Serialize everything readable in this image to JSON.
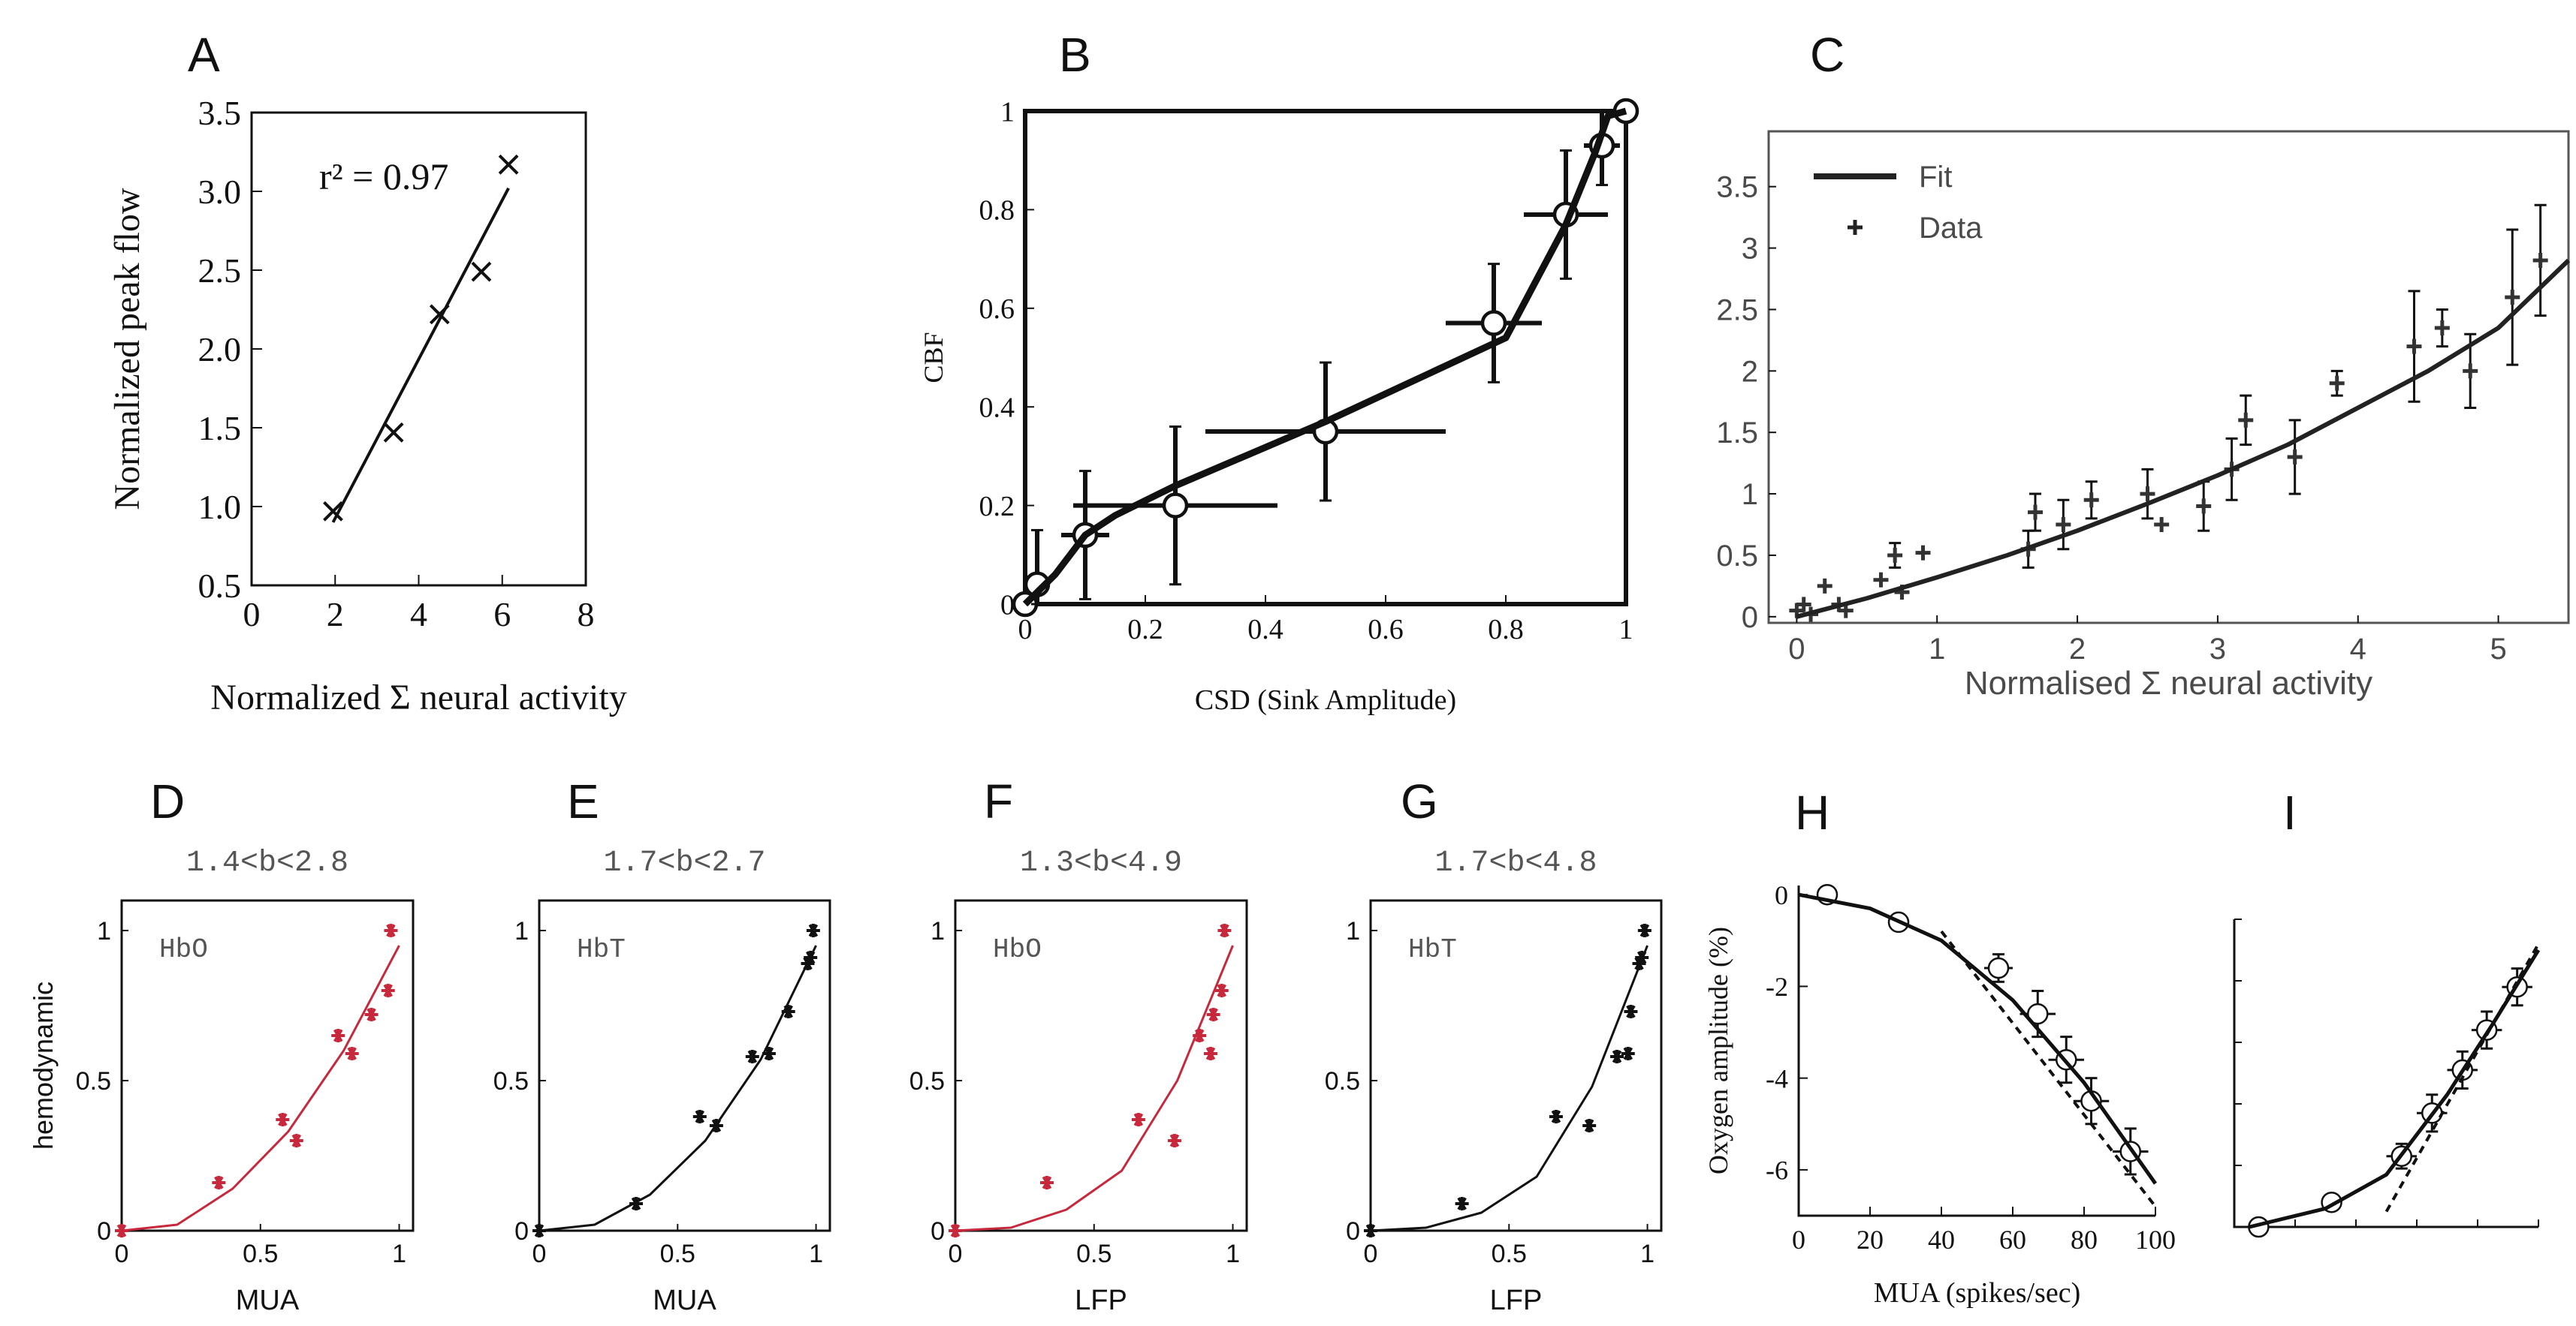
{
  "figure": {
    "panel_letters": [
      "A",
      "B",
      "C",
      "D",
      "E",
      "F",
      "G",
      "H",
      "I"
    ]
  },
  "colors": {
    "ink": "#111111",
    "hbo_red": "#c8283c",
    "grey_text": "#4a4a4a"
  },
  "chart_data": [
    {
      "panel": "A",
      "type": "scatter",
      "title": "",
      "xlabel": "Normalized Σ neural activity",
      "ylabel": "Normalized peak flow",
      "xlim": [
        0,
        8
      ],
      "ylim": [
        0.5,
        3.5
      ],
      "xticks": [
        0,
        2,
        4,
        6,
        8
      ],
      "xtick_labels": [
        "0",
        "2",
        "4",
        "6",
        "8"
      ],
      "yticks": [
        0.5,
        1.0,
        1.5,
        2.0,
        2.5,
        3.0,
        3.5
      ],
      "ytick_labels": [
        "0.5",
        "1.0",
        "1.5",
        "2.0",
        "2.5",
        "3.0",
        "3.5"
      ],
      "annotation": "r² = 0.97",
      "series": [
        {
          "name": "Data",
          "marker": "x",
          "x": [
            1.95,
            3.4,
            4.5,
            5.5,
            6.15
          ],
          "y": [
            0.97,
            1.47,
            2.22,
            2.49,
            3.17
          ]
        },
        {
          "name": "Fit",
          "line": true,
          "x": [
            1.95,
            6.15
          ],
          "y": [
            0.9,
            3.02
          ]
        }
      ]
    },
    {
      "panel": "B",
      "type": "line",
      "title": "",
      "xlabel": "CSD (Sink Amplitude)",
      "ylabel": "CBF",
      "xlim": [
        0,
        1
      ],
      "ylim": [
        0,
        1
      ],
      "xticks": [
        0,
        0.2,
        0.4,
        0.6,
        0.8,
        1
      ],
      "xtick_labels": [
        "0",
        "0.2",
        "0.4",
        "0.6",
        "0.8",
        "1"
      ],
      "yticks": [
        0,
        0.2,
        0.4,
        0.6,
        0.8,
        1
      ],
      "ytick_labels": [
        "0",
        "0.2",
        "0.4",
        "0.6",
        "0.8",
        "1"
      ],
      "series": [
        {
          "name": "Data",
          "marker": "o",
          "x": [
            0,
            0.02,
            0.1,
            0.25,
            0.5,
            0.78,
            0.9,
            0.96,
            1.0
          ],
          "y": [
            0,
            0.04,
            0.14,
            0.2,
            0.35,
            0.57,
            0.79,
            0.93,
            1.0
          ],
          "xerr": [
            0,
            0,
            0.04,
            0.17,
            0.2,
            0.08,
            0.07,
            0.03,
            0
          ],
          "yerr": [
            0,
            0.11,
            0.13,
            0.16,
            0.14,
            0.12,
            0.13,
            0.08,
            0
          ]
        },
        {
          "name": "Fit",
          "line": true,
          "x": [
            0,
            0.05,
            0.1,
            0.15,
            0.25,
            0.5,
            0.8,
            0.9,
            0.95,
            0.97,
            1.0
          ],
          "y": [
            0,
            0.06,
            0.14,
            0.18,
            0.24,
            0.37,
            0.54,
            0.77,
            0.92,
            0.99,
            1.0
          ]
        }
      ]
    },
    {
      "panel": "C",
      "type": "scatter",
      "title": "",
      "xlabel": "Normalised Σ neural activity",
      "ylabel": "",
      "xlim": [
        -0.2,
        5.5
      ],
      "ylim": [
        -0.05,
        3.95
      ],
      "xticks": [
        0,
        1,
        2,
        3,
        4,
        5
      ],
      "xtick_labels": [
        "0",
        "1",
        "2",
        "3",
        "4",
        "5"
      ],
      "yticks": [
        0,
        0.5,
        1,
        1.5,
        2,
        2.5,
        3,
        3.5
      ],
      "ytick_labels": [
        "0",
        "0.5",
        "1",
        "1.5",
        "2",
        "2.5",
        "3",
        "3.5"
      ],
      "legend": [
        "Fit",
        "Data"
      ],
      "series": [
        {
          "name": "Data",
          "marker": "+",
          "x": [
            0.0,
            0.05,
            0.1,
            0.2,
            0.3,
            0.35,
            0.6,
            0.7,
            0.75,
            0.9,
            1.65,
            1.7,
            1.9,
            2.1,
            2.5,
            2.6,
            2.9,
            3.1,
            3.2,
            3.55,
            3.85,
            4.4,
            4.6,
            4.8,
            5.1,
            5.3
          ],
          "y": [
            0.05,
            0.1,
            0.02,
            0.25,
            0.1,
            0.05,
            0.3,
            0.5,
            0.2,
            0.52,
            0.55,
            0.85,
            0.75,
            0.95,
            1.0,
            0.75,
            0.9,
            1.2,
            1.6,
            1.3,
            1.9,
            2.2,
            2.35,
            2.0,
            2.6,
            2.9
          ],
          "yerr": [
            0,
            0,
            0,
            0,
            0,
            0,
            0,
            0.1,
            0,
            0,
            0.15,
            0.15,
            0.2,
            0.15,
            0.2,
            0,
            0.2,
            0.25,
            0.2,
            0.3,
            0.1,
            0.45,
            0.15,
            0.3,
            0.55,
            0.45
          ]
        },
        {
          "name": "Fit",
          "line": true,
          "x": [
            0,
            0.5,
            1,
            1.5,
            2,
            2.5,
            3,
            3.5,
            4,
            4.5,
            5,
            5.5
          ],
          "y": [
            0,
            0.15,
            0.32,
            0.5,
            0.7,
            0.92,
            1.15,
            1.4,
            1.7,
            2.0,
            2.35,
            2.9
          ]
        }
      ]
    },
    {
      "panel": "D",
      "type": "scatter",
      "title": "1.4<b<2.8",
      "inset_label": "HbO",
      "xlabel": "MUA",
      "ylabel": "hemodynamic",
      "xlim": [
        0,
        1.05
      ],
      "ylim": [
        0,
        1.1
      ],
      "xticks": [
        0,
        0.5,
        1
      ],
      "xtick_labels": [
        "0",
        "0.5",
        "1"
      ],
      "yticks": [
        0,
        0.5,
        1
      ],
      "ytick_labels": [
        "0",
        "0.5",
        "1"
      ],
      "series": [
        {
          "name": "Data",
          "marker": "*",
          "x": [
            0,
            0.35,
            0.58,
            0.63,
            0.78,
            0.83,
            0.9,
            0.96,
            0.97
          ],
          "y": [
            0,
            0.16,
            0.37,
            0.3,
            0.65,
            0.59,
            0.72,
            0.8,
            1.0
          ]
        },
        {
          "name": "Fit",
          "line": true,
          "x": [
            0,
            0.2,
            0.4,
            0.6,
            0.8,
            1.0
          ],
          "y": [
            0,
            0.02,
            0.14,
            0.33,
            0.6,
            0.95
          ]
        }
      ]
    },
    {
      "panel": "E",
      "type": "scatter",
      "title": "1.7<b<2.7",
      "inset_label": "HbT",
      "xlabel": "MUA",
      "ylabel": "",
      "xlim": [
        0,
        1.05
      ],
      "ylim": [
        0,
        1.1
      ],
      "xticks": [
        0,
        0.5,
        1
      ],
      "xtick_labels": [
        "0",
        "0.5",
        "1"
      ],
      "yticks": [
        0,
        0.5,
        1
      ],
      "ytick_labels": [
        "0",
        "0.5",
        "1"
      ],
      "series": [
        {
          "name": "Data",
          "marker": "*",
          "x": [
            0,
            0.35,
            0.58,
            0.64,
            0.77,
            0.83,
            0.9,
            0.97,
            0.98,
            0.99
          ],
          "y": [
            0,
            0.09,
            0.38,
            0.35,
            0.58,
            0.59,
            0.73,
            0.89,
            0.91,
            1.0
          ]
        },
        {
          "name": "Fit",
          "line": true,
          "x": [
            0,
            0.2,
            0.4,
            0.6,
            0.8,
            1.0
          ],
          "y": [
            0,
            0.02,
            0.12,
            0.3,
            0.57,
            0.95
          ]
        }
      ]
    },
    {
      "panel": "F",
      "type": "scatter",
      "title": "1.3<b<4.9",
      "inset_label": "HbO",
      "xlabel": "LFP",
      "ylabel": "",
      "xlim": [
        0,
        1.05
      ],
      "ylim": [
        0,
        1.1
      ],
      "xticks": [
        0,
        0.5,
        1
      ],
      "xtick_labels": [
        "0",
        "0.5",
        "1"
      ],
      "yticks": [
        0,
        0.5,
        1
      ],
      "ytick_labels": [
        "0",
        "0.5",
        "1"
      ],
      "series": [
        {
          "name": "Data",
          "marker": "*",
          "x": [
            0,
            0.33,
            0.66,
            0.79,
            0.88,
            0.92,
            0.93,
            0.96,
            0.97
          ],
          "y": [
            0,
            0.16,
            0.37,
            0.3,
            0.65,
            0.59,
            0.72,
            0.8,
            1.0
          ]
        },
        {
          "name": "Fit",
          "line": true,
          "x": [
            0,
            0.2,
            0.4,
            0.6,
            0.8,
            1.0
          ],
          "y": [
            0,
            0.01,
            0.07,
            0.2,
            0.5,
            0.95
          ]
        }
      ]
    },
    {
      "panel": "G",
      "type": "scatter",
      "title": "1.7<b<4.8",
      "inset_label": "HbT",
      "xlabel": "LFP",
      "ylabel": "",
      "xlim": [
        0,
        1.05
      ],
      "ylim": [
        0,
        1.1
      ],
      "xticks": [
        0,
        0.5,
        1
      ],
      "xtick_labels": [
        "0",
        "0.5",
        "1"
      ],
      "yticks": [
        0,
        0.5,
        1
      ],
      "ytick_labels": [
        "0",
        "0.5",
        "1"
      ],
      "series": [
        {
          "name": "Data",
          "marker": "*",
          "x": [
            0,
            0.33,
            0.67,
            0.79,
            0.89,
            0.93,
            0.94,
            0.97,
            0.98,
            0.99
          ],
          "y": [
            0,
            0.09,
            0.38,
            0.35,
            0.58,
            0.59,
            0.73,
            0.89,
            0.91,
            1.0
          ]
        },
        {
          "name": "Fit",
          "line": true,
          "x": [
            0,
            0.2,
            0.4,
            0.6,
            0.8,
            1.0
          ],
          "y": [
            0,
            0.01,
            0.06,
            0.18,
            0.48,
            0.95
          ]
        }
      ]
    },
    {
      "panel": "H",
      "type": "scatter",
      "title": "",
      "xlabel": "MUA (spikes/sec)",
      "ylabel": "Oxygen amplitude (%)",
      "xlim": [
        0,
        100
      ],
      "ylim": [
        -7,
        0.2
      ],
      "xticks": [
        0,
        20,
        40,
        60,
        80,
        100
      ],
      "xtick_labels": [
        "0",
        "20",
        "40",
        "60",
        "80",
        "100"
      ],
      "yticks": [
        0,
        -2,
        -4,
        -6
      ],
      "ytick_labels": [
        "0",
        "-2",
        "-4",
        "-6"
      ],
      "series": [
        {
          "name": "Data",
          "marker": "o",
          "x": [
            8,
            28,
            56,
            67,
            75,
            82,
            93
          ],
          "y": [
            0,
            -0.6,
            -1.6,
            -2.6,
            -3.6,
            -4.5,
            -5.6
          ],
          "xerr": [
            0,
            0,
            4,
            5,
            5,
            5,
            5
          ],
          "yerr": [
            0,
            0,
            0.3,
            0.5,
            0.5,
            0.5,
            0.5
          ]
        },
        {
          "name": "Fit",
          "line": true,
          "x": [
            0,
            20,
            40,
            60,
            80,
            100
          ],
          "y": [
            0,
            -0.3,
            -1.0,
            -2.3,
            -4.1,
            -6.3
          ]
        },
        {
          "name": "Tangent",
          "line": true,
          "dashed": true,
          "x": [
            40,
            100
          ],
          "y": [
            -0.8,
            -6.8
          ]
        }
      ]
    },
    {
      "panel": "I",
      "type": "scatter",
      "title": "",
      "xlabel": "",
      "ylabel": "",
      "xlim": [
        0,
        1
      ],
      "ylim": [
        0,
        1
      ],
      "xticks": [
        0,
        0.2,
        0.4,
        0.6,
        0.8,
        1.0
      ],
      "xtick_labels": [
        "",
        "",
        "",
        "",
        "",
        ""
      ],
      "yticks": [
        0,
        0.2,
        0.4,
        0.6,
        0.8,
        1.0
      ],
      "ytick_labels": [
        "",
        "",
        "",
        "",
        "",
        ""
      ],
      "series": [
        {
          "name": "Data",
          "marker": "o",
          "x": [
            0.08,
            0.32,
            0.55,
            0.65,
            0.75,
            0.83,
            0.93
          ],
          "y": [
            0.0,
            0.08,
            0.23,
            0.37,
            0.51,
            0.64,
            0.78
          ],
          "xerr": [
            0,
            0,
            0.05,
            0.05,
            0.05,
            0.05,
            0.05
          ],
          "yerr": [
            0,
            0,
            0.04,
            0.06,
            0.06,
            0.06,
            0.06
          ]
        },
        {
          "name": "Fit",
          "line": true,
          "x": [
            0.05,
            0.3,
            0.5,
            0.7,
            0.85,
            1.0
          ],
          "y": [
            0,
            0.06,
            0.17,
            0.43,
            0.66,
            0.9
          ]
        },
        {
          "name": "Tangent",
          "line": true,
          "dashed": true,
          "x": [
            0.5,
            1.0
          ],
          "y": [
            0.05,
            0.92
          ]
        }
      ]
    }
  ]
}
